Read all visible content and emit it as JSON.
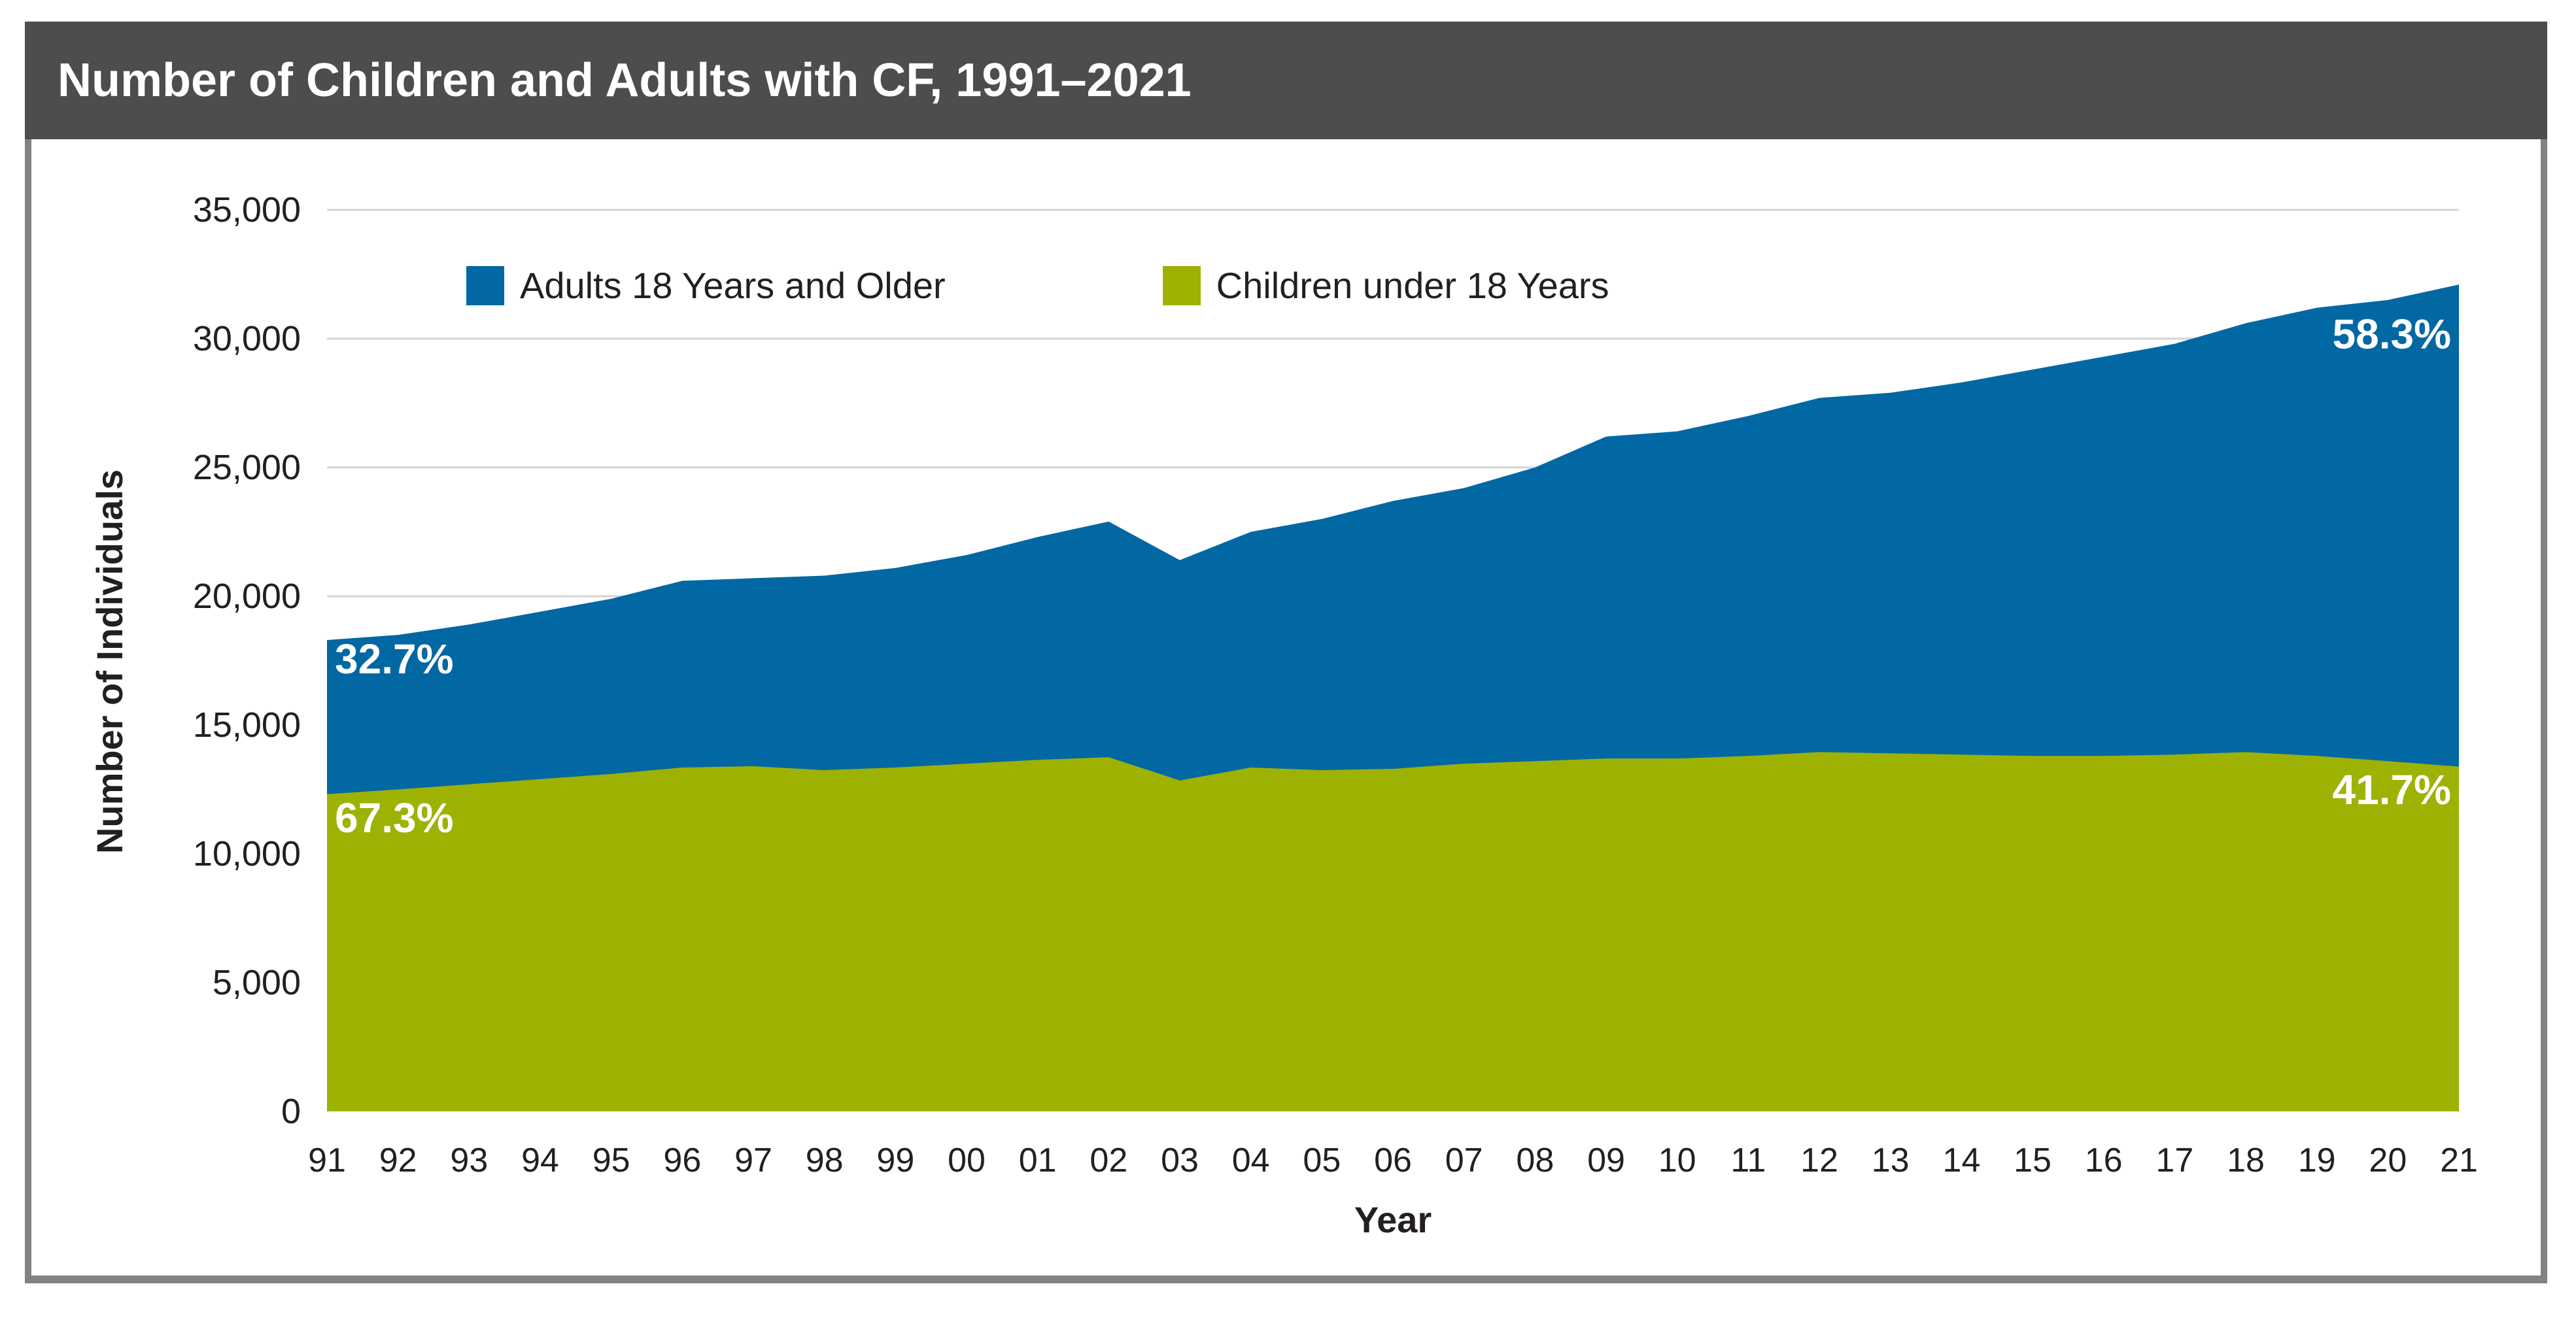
{
  "title": "Number of Children and Adults with CF, 1991–2021",
  "colors": {
    "title_bar_bg": "#4D4D4F",
    "title_text": "#FFFFFF",
    "frame_border": "#808285",
    "gridline": "#D4D4D6",
    "adults_blue": "#0268A3",
    "children_green": "#9DB202",
    "tick_text": "#231F20",
    "annotation_text": "#FFFFFF"
  },
  "y_axis": {
    "label": "Number of Individuals",
    "ticks": [
      "0",
      "5,000",
      "10,000",
      "15,000",
      "20,000",
      "25,000",
      "30,000",
      "35,000"
    ],
    "tick_values": [
      0,
      5000,
      10000,
      15000,
      20000,
      25000,
      30000,
      35000
    ]
  },
  "x_axis": {
    "label": "Year",
    "ticks": [
      "91",
      "92",
      "93",
      "94",
      "95",
      "96",
      "97",
      "98",
      "99",
      "00",
      "01",
      "02",
      "03",
      "04",
      "05",
      "06",
      "07",
      "08",
      "09",
      "10",
      "11",
      "12",
      "13",
      "14",
      "15",
      "16",
      "17",
      "18",
      "19",
      "20",
      "21"
    ]
  },
  "legend": {
    "items": [
      {
        "label": "Adults 18 Years and Older",
        "color": "#0268A3"
      },
      {
        "label": "Children under 18 Years",
        "color": "#9DB202"
      }
    ]
  },
  "annotations": {
    "adults_start_pct": "32.7%",
    "children_start_pct": "67.3%",
    "adults_end_pct": "58.3%",
    "children_end_pct": "41.7%"
  },
  "chart_data": {
    "type": "area",
    "stacked": true,
    "title": "Number of Children and Adults with CF, 1991–2021",
    "xlabel": "Year",
    "ylabel": "Number of Individuals",
    "ylim": [
      0,
      35000
    ],
    "grid": "horizontal",
    "legend_position": "top-left-inside",
    "categories": [
      "91",
      "92",
      "93",
      "94",
      "95",
      "96",
      "97",
      "98",
      "99",
      "00",
      "01",
      "02",
      "03",
      "04",
      "05",
      "06",
      "07",
      "08",
      "09",
      "10",
      "11",
      "12",
      "13",
      "14",
      "15",
      "16",
      "17",
      "18",
      "19",
      "20",
      "21"
    ],
    "series": [
      {
        "name": "Children under 18 Years",
        "color": "#9DB202",
        "values": [
          12320,
          12500,
          12700,
          12900,
          13100,
          13350,
          13400,
          13250,
          13350,
          13500,
          13650,
          13750,
          12850,
          13350,
          13250,
          13300,
          13500,
          13600,
          13700,
          13700,
          13800,
          13950,
          13900,
          13850,
          13800,
          13800,
          13850,
          13950,
          13800,
          13600,
          13386
        ]
      },
      {
        "name": "Adults 18 Years and Older",
        "color": "#0268A3",
        "values": [
          5980,
          6000,
          6200,
          6500,
          6800,
          7250,
          7300,
          7550,
          7750,
          8100,
          8650,
          9150,
          8550,
          9150,
          9750,
          10400,
          10700,
          11400,
          12500,
          12700,
          13200,
          13750,
          14000,
          14450,
          15000,
          15500,
          15950,
          16650,
          17400,
          17900,
          18714
        ]
      }
    ],
    "annotations": [
      {
        "text": "32.7%",
        "series": "Adults 18 Years and Older",
        "position": "start"
      },
      {
        "text": "67.3%",
        "series": "Children under 18 Years",
        "position": "start"
      },
      {
        "text": "58.3%",
        "series": "Adults 18 Years and Older",
        "position": "end"
      },
      {
        "text": "41.7%",
        "series": "Children under 18 Years",
        "position": "end"
      }
    ]
  }
}
